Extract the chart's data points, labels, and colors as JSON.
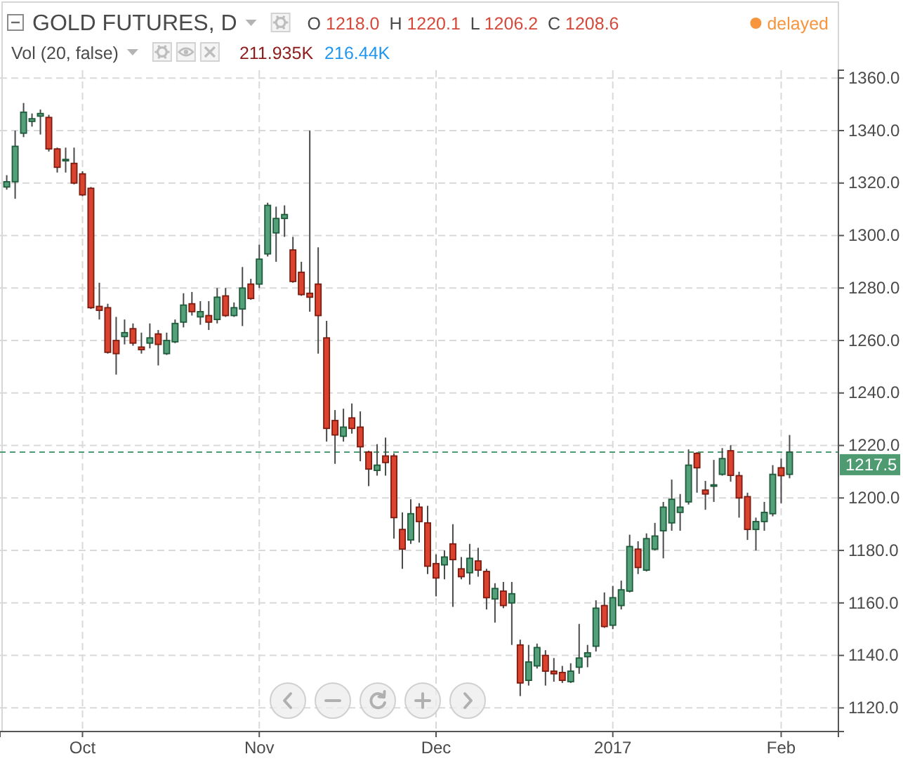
{
  "chart_data": {
    "type": "candlestick",
    "title": "GOLD FUTURES, D",
    "categories": [
      null,
      null,
      null,
      null,
      null,
      null,
      null,
      null,
      null,
      "Oct",
      null,
      null,
      null,
      null,
      null,
      null,
      null,
      null,
      null,
      null,
      null,
      null,
      null,
      null,
      null,
      null,
      null,
      null,
      null,
      null,
      "Nov",
      null,
      null,
      null,
      null,
      null,
      null,
      null,
      null,
      null,
      null,
      null,
      null,
      null,
      null,
      null,
      null,
      null,
      null,
      null,
      null,
      "Dec",
      null,
      null,
      null,
      null,
      null,
      null,
      null,
      null,
      null,
      null,
      null,
      null,
      null,
      null,
      null,
      null,
      null,
      null,
      null,
      null,
      "2017",
      null,
      null,
      null,
      null,
      null,
      null,
      null,
      null,
      null,
      null,
      null,
      null,
      null,
      null,
      null,
      null,
      null,
      null,
      null,
      "Feb",
      null
    ],
    "ohlc": [
      [
        1318.5,
        1323,
        1317.5,
        1320.5
      ],
      [
        1320.5,
        1340,
        1314,
        1334
      ],
      [
        1339,
        1350.5,
        1337.5,
        1347
      ],
      [
        1343.5,
        1346.5,
        1341.5,
        1344.5
      ],
      [
        1345.5,
        1348,
        1338.5,
        1346.5
      ],
      [
        1345,
        1346,
        1332,
        1333
      ],
      [
        1333,
        1333.5,
        1324,
        1326
      ],
      [
        1328.5,
        1333.5,
        1324,
        1329
      ],
      [
        1327.5,
        1333.5,
        1319.5,
        1320
      ],
      [
        1323.5,
        1324.5,
        1315,
        1315.5
      ],
      [
        1318,
        1318.5,
        1272,
        1272.5
      ],
      [
        1273,
        1282,
        1268,
        1271.5
      ],
      [
        1272.5,
        1274,
        1255,
        1255.5
      ],
      [
        1260,
        1269,
        1247,
        1255
      ],
      [
        1261.5,
        1268,
        1258.5,
        1263
      ],
      [
        1264.5,
        1266.5,
        1258,
        1259
      ],
      [
        1257.5,
        1263,
        1255,
        1256.5
      ],
      [
        1259,
        1266.5,
        1257,
        1261
      ],
      [
        1262.5,
        1264,
        1250.5,
        1258.5
      ],
      [
        1255,
        1263,
        1254.5,
        1260
      ],
      [
        1259.5,
        1268,
        1259,
        1266.5
      ],
      [
        1267,
        1278,
        1265,
        1273.5
      ],
      [
        1274,
        1278.5,
        1269.5,
        1271
      ],
      [
        1269,
        1275,
        1266,
        1271
      ],
      [
        1269.5,
        1275,
        1264,
        1267
      ],
      [
        1268,
        1280,
        1266.5,
        1276.5
      ],
      [
        1277,
        1280,
        1269,
        1269.5
      ],
      [
        1269.5,
        1274.5,
        1269,
        1272.5
      ],
      [
        1272,
        1288,
        1265.5,
        1280
      ],
      [
        1281.5,
        1283.5,
        1275.5,
        1276
      ],
      [
        1281.5,
        1296.5,
        1280,
        1291
      ],
      [
        1293,
        1312.5,
        1292,
        1311.5
      ],
      [
        1301,
        1311,
        1290,
        1306.5
      ],
      [
        1306.5,
        1311.5,
        1299.5,
        1308
      ],
      [
        1294.5,
        1299.5,
        1282,
        1282.5
      ],
      [
        1286,
        1290,
        1277,
        1277.5
      ],
      [
        1278,
        1340,
        1271,
        1276.5
      ],
      [
        1281.5,
        1295.5,
        1255,
        1269.5
      ],
      [
        1261,
        1267.5,
        1221.5,
        1226.5
      ],
      [
        1229.5,
        1233.5,
        1213,
        1224
      ],
      [
        1223.5,
        1234,
        1221.5,
        1227
      ],
      [
        1230.5,
        1236,
        1224.5,
        1226.5
      ],
      [
        1227,
        1233,
        1214,
        1219.5
      ],
      [
        1217.5,
        1218,
        1204.5,
        1211
      ],
      [
        1210.5,
        1220.5,
        1208.5,
        1212.5
      ],
      [
        1216,
        1223,
        1208.5,
        1213.5
      ],
      [
        1216,
        1217,
        1184.5,
        1192.5
      ],
      [
        1188,
        1194.5,
        1173,
        1180.5
      ],
      [
        1184,
        1199.5,
        1182.5,
        1194
      ],
      [
        1196.5,
        1198,
        1183,
        1191
      ],
      [
        1190.5,
        1197,
        1171,
        1174
      ],
      [
        1175,
        1178.5,
        1162.5,
        1169.5
      ],
      [
        1174.5,
        1180,
        1169,
        1177.5
      ],
      [
        1182.5,
        1190,
        1158.5,
        1176.5
      ],
      [
        1173,
        1177.5,
        1169,
        1170
      ],
      [
        1171.5,
        1182.5,
        1167,
        1177
      ],
      [
        1176,
        1181,
        1170,
        1172.5
      ],
      [
        1172,
        1173,
        1157.5,
        1162
      ],
      [
        1161.5,
        1167.5,
        1152.5,
        1165.5
      ],
      [
        1164.5,
        1168,
        1158,
        1159
      ],
      [
        1160,
        1168,
        1144,
        1163.5
      ],
      [
        1144,
        1146,
        1124.5,
        1129.5
      ],
      [
        1130.5,
        1144,
        1128.5,
        1137.5
      ],
      [
        1136,
        1144.5,
        1135,
        1143
      ],
      [
        1140,
        1142,
        1128.5,
        1134
      ],
      [
        1134,
        1139,
        1130,
        1133
      ],
      [
        1133.5,
        1136,
        1129.5,
        1130.5
      ],
      [
        1130,
        1137,
        1129.5,
        1134
      ],
      [
        1135.5,
        1152,
        1133,
        1139
      ],
      [
        1139.5,
        1144,
        1135.5,
        1141
      ],
      [
        1143.5,
        1161,
        1141.5,
        1158
      ],
      [
        1159,
        1164,
        1150.5,
        1151
      ],
      [
        1151.5,
        1166.5,
        1150,
        1162
      ],
      [
        1159,
        1168.5,
        1157.5,
        1165
      ],
      [
        1164.5,
        1186,
        1164,
        1181.5
      ],
      [
        1180.5,
        1183.5,
        1171,
        1173.5
      ],
      [
        1172.5,
        1186.5,
        1172,
        1184.5
      ],
      [
        1180.5,
        1190.5,
        1180,
        1185.5
      ],
      [
        1187.5,
        1198.5,
        1177,
        1196.5
      ],
      [
        1190.5,
        1207,
        1187.5,
        1199.5
      ],
      [
        1194.5,
        1201.5,
        1187.5,
        1196.5
      ],
      [
        1198.5,
        1218.5,
        1197.5,
        1212.5
      ],
      [
        1217,
        1217.5,
        1202,
        1211.5
      ],
      [
        1203,
        1206.5,
        1195.5,
        1201.5
      ],
      [
        1204.5,
        1214.5,
        1198.5,
        1205
      ],
      [
        1209,
        1219,
        1208.5,
        1215
      ],
      [
        1218.0,
        1220.1,
        1206.2,
        1208.6
      ],
      [
        1208.5,
        1210,
        1192.5,
        1200
      ],
      [
        1200.5,
        1202,
        1184,
        1188
      ],
      [
        1188,
        1192.5,
        1180,
        1191
      ],
      [
        1191,
        1198.5,
        1187.5,
        1194.5
      ],
      [
        1194,
        1212.5,
        1193,
        1209
      ],
      [
        1211.5,
        1215,
        1198,
        1208.5
      ],
      [
        1209,
        1224,
        1207.5,
        1217.5
      ]
    ],
    "ylim": [
      1111,
      1363
    ],
    "yticks": [
      {
        "value": 1120,
        "label": "1120.0"
      },
      {
        "value": 1140,
        "label": "1140.0"
      },
      {
        "value": 1160,
        "label": "1160.0"
      },
      {
        "value": 1180,
        "label": "1180.0"
      },
      {
        "value": 1200,
        "label": "1200.0"
      },
      {
        "value": 1220,
        "label": "1220.0"
      },
      {
        "value": 1240,
        "label": "1240.0"
      },
      {
        "value": 1260,
        "label": "1260.0"
      },
      {
        "value": 1280,
        "label": "1280.0"
      },
      {
        "value": 1300,
        "label": "1300.0"
      },
      {
        "value": 1320,
        "label": "1320.0"
      },
      {
        "value": 1340,
        "label": "1340.0"
      },
      {
        "value": 1360,
        "label": "1360.0"
      }
    ],
    "grid": true,
    "ref_lines": [
      {
        "axis": "y",
        "value": 1217.5,
        "label": "1217.5",
        "color": "#4e9a71",
        "line_style": "dashed"
      }
    ],
    "annotations": [
      "O 1218.0 H 1220.1 L 1206.2 C 1208.6",
      "delayed",
      "Vol (20, false)",
      "211.935K",
      "216.44K"
    ]
  }
}
